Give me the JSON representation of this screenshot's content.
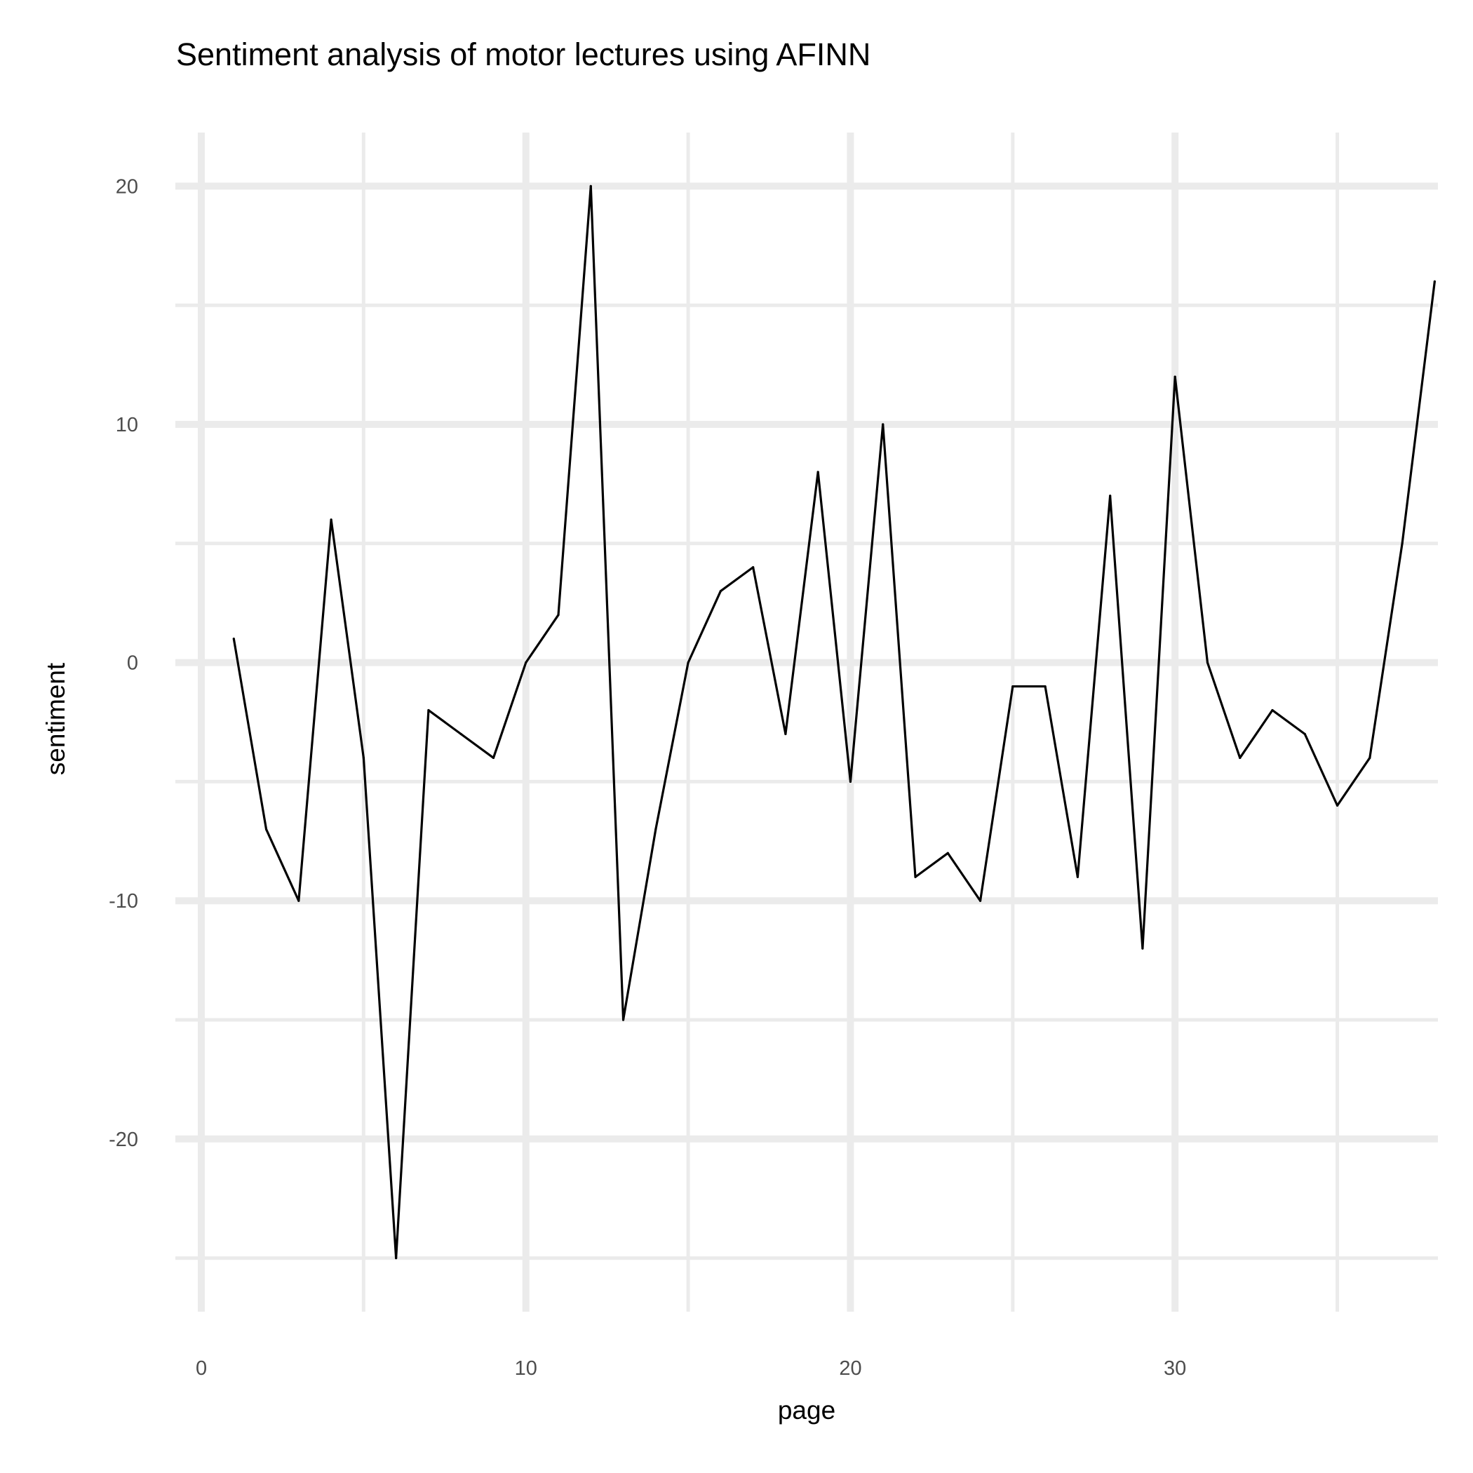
{
  "chart_data": {
    "type": "line",
    "title": "Sentiment analysis of motor lectures using AFINN",
    "xlabel": "page",
    "ylabel": "sentiment",
    "xlim": [
      -0.8,
      38.1
    ],
    "ylim": [
      -27.25,
      22.25
    ],
    "x_ticks": [
      0,
      10,
      20,
      30
    ],
    "x_tick_labels": [
      "0",
      "10",
      "20",
      "30"
    ],
    "x_minor_ticks": [
      5,
      15,
      25,
      35
    ],
    "y_ticks": [
      -20,
      -10,
      0,
      10,
      20
    ],
    "y_tick_labels": [
      "-20",
      "-10",
      "0",
      "10",
      "20"
    ],
    "y_minor_ticks": [
      -25,
      -15,
      -5,
      5,
      15
    ],
    "grid": true,
    "legend": "none",
    "line_color": "#000000",
    "grid_color": "#ebebeb",
    "series": [
      {
        "x": [
          1,
          2,
          3,
          4,
          5,
          6,
          7,
          8,
          9,
          10,
          11,
          12,
          13,
          14,
          15,
          16,
          17,
          18,
          19,
          20,
          21,
          22,
          23,
          24,
          25,
          26,
          27,
          28,
          29,
          30,
          31,
          32,
          33,
          34,
          35,
          36,
          37,
          38
        ],
        "values": [
          1,
          -7,
          -10,
          6,
          -4,
          -25,
          -2,
          -3,
          -4,
          0,
          2,
          20,
          -15,
          -7,
          0,
          3,
          4,
          -3,
          8,
          -5,
          10,
          -9,
          -8,
          -10,
          -1,
          -1,
          -9,
          7,
          -12,
          12,
          0,
          -4,
          -2,
          -3,
          -6,
          -4,
          5,
          16
        ]
      }
    ]
  }
}
